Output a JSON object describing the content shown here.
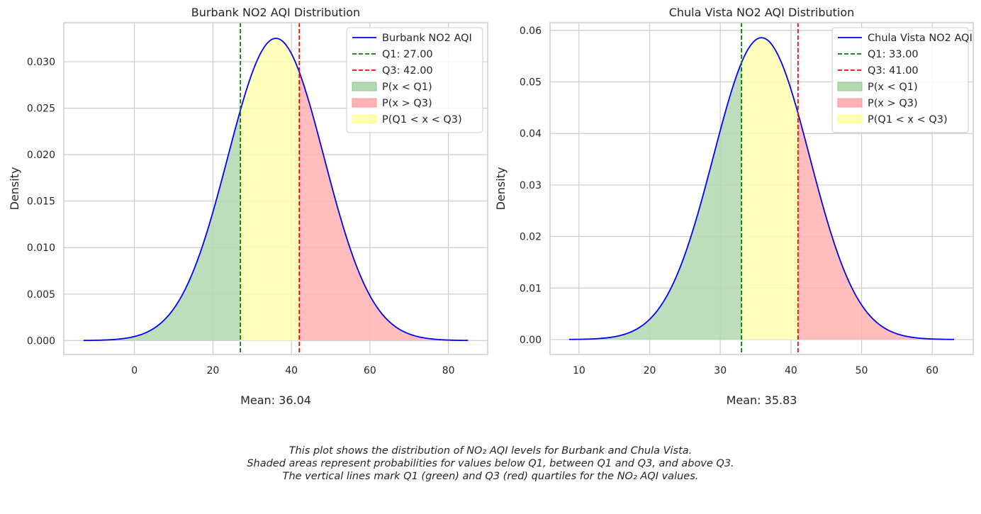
{
  "chart_data": [
    {
      "type": "area",
      "title": "Burbank NO2 AQI Distribution",
      "xlabel": "",
      "ylabel": "Density",
      "distribution": "normal",
      "mean": 36.04,
      "std": 12.27,
      "x_range": [
        -13.0,
        85.0
      ],
      "xlim": [
        -18.0,
        90.0
      ],
      "ylim": [
        -0.0015,
        0.0342
      ],
      "xticks": [
        0,
        20,
        40,
        60,
        80
      ],
      "yticks": [
        0.0,
        0.005,
        0.01,
        0.015,
        0.02,
        0.025,
        0.03
      ],
      "ytick_labels": [
        "0.000",
        "0.005",
        "0.010",
        "0.015",
        "0.020",
        "0.025",
        "0.030"
      ],
      "q1": 27.0,
      "q3": 42.0,
      "mean_label": "Mean: 36.04",
      "grid": true,
      "legend_position": "top-right",
      "legend": [
        {
          "label": "Burbank NO2 AQI",
          "kind": "line",
          "color": "#0000ff"
        },
        {
          "label": "Q1: 27.00",
          "kind": "dashed",
          "color": "#008000"
        },
        {
          "label": "Q3: 42.00",
          "kind": "dashed",
          "color": "#ff0000"
        },
        {
          "label": "P(x < Q1)",
          "kind": "patch",
          "color": "#b2d8b2",
          "edge": "#8fc48f"
        },
        {
          "label": "P(x > Q3)",
          "kind": "patch",
          "color": "#ffb2b2",
          "edge": "#ff9a9a"
        },
        {
          "label": "P(Q1 < x < Q3)",
          "kind": "patch",
          "color": "#ffffb2",
          "edge": "#ffff8a"
        }
      ]
    },
    {
      "type": "area",
      "title": "Chula Vista NO2 AQI Distribution",
      "xlabel": "",
      "ylabel": "Density",
      "distribution": "normal",
      "mean": 35.83,
      "std": 6.81,
      "x_range": [
        8.6,
        63.1
      ],
      "xlim": [
        5.9,
        65.8
      ],
      "ylim": [
        -0.0029,
        0.0615
      ],
      "xticks": [
        10,
        20,
        30,
        40,
        50,
        60
      ],
      "yticks": [
        0.0,
        0.01,
        0.02,
        0.03,
        0.04,
        0.05,
        0.06
      ],
      "ytick_labels": [
        "0.00",
        "0.01",
        "0.02",
        "0.03",
        "0.04",
        "0.05",
        "0.06"
      ],
      "q1": 33.0,
      "q3": 41.0,
      "mean_label": "Mean: 35.83",
      "grid": true,
      "legend_position": "top-right",
      "legend": [
        {
          "label": "Chula Vista NO2 AQI",
          "kind": "line",
          "color": "#0000ff"
        },
        {
          "label": "Q1: 33.00",
          "kind": "dashed",
          "color": "#008000"
        },
        {
          "label": "Q3: 41.00",
          "kind": "dashed",
          "color": "#ff0000"
        },
        {
          "label": "P(x < Q1)",
          "kind": "patch",
          "color": "#b2d8b2",
          "edge": "#8fc48f"
        },
        {
          "label": "P(x > Q3)",
          "kind": "patch",
          "color": "#ffb2b2",
          "edge": "#ff9a9a"
        },
        {
          "label": "P(Q1 < x < Q3)",
          "kind": "patch",
          "color": "#ffffb2",
          "edge": "#ffff8a"
        }
      ]
    }
  ],
  "caption": {
    "line1": "This plot shows the distribution of NO₂ AQI levels for Burbank and Chula Vista.",
    "line2": "Shaded areas represent probabilities for values below Q1, between Q1 and Q3, and above Q3.",
    "line3": "The vertical lines mark Q1 (green) and Q3 (red) quartiles for the NO₂ AQI values."
  },
  "colors": {
    "curve": "#0000ff",
    "q1_line": "#008000",
    "q3_line": "#ff0000",
    "fill_below_q1": "#b2d8b2",
    "fill_above_q3": "#ffb2b2",
    "fill_between": "#ffffb2",
    "grid": "#cccccc",
    "axes_edge": "#cccccc"
  }
}
